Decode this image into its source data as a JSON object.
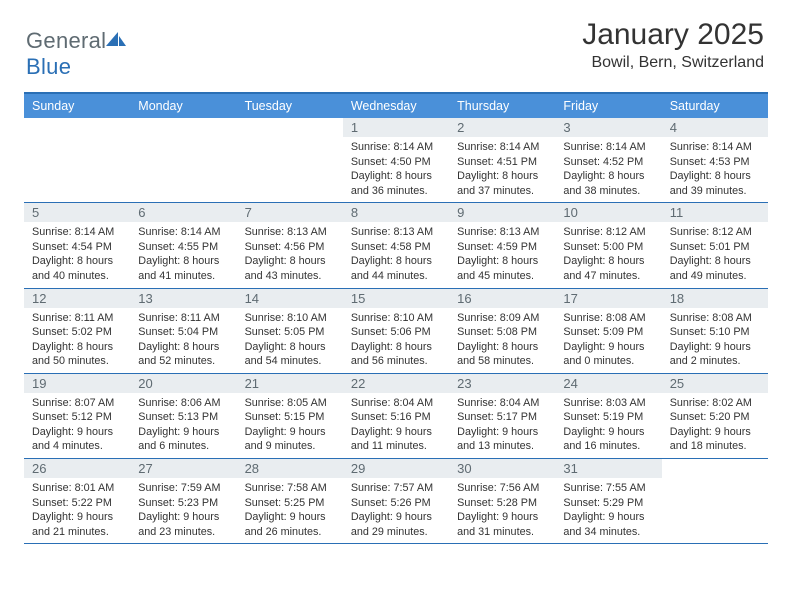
{
  "brand": {
    "name_part1": "General",
    "name_part2": "Blue",
    "text_color": "#5f6b72",
    "accent_color": "#2a6fb5"
  },
  "title": "January 2025",
  "location": "Bowil, Bern, Switzerland",
  "colors": {
    "header_bar": "#4a90d9",
    "rule": "#2a6fb5",
    "daynum_bg": "#e9edf0",
    "daynum_fg": "#5f6b72",
    "text": "#333333",
    "background": "#ffffff"
  },
  "day_names": [
    "Sunday",
    "Monday",
    "Tuesday",
    "Wednesday",
    "Thursday",
    "Friday",
    "Saturday"
  ],
  "weeks": [
    [
      {
        "n": "",
        "lines": []
      },
      {
        "n": "",
        "lines": []
      },
      {
        "n": "",
        "lines": []
      },
      {
        "n": "1",
        "lines": [
          "Sunrise: 8:14 AM",
          "Sunset: 4:50 PM",
          "Daylight: 8 hours and 36 minutes."
        ]
      },
      {
        "n": "2",
        "lines": [
          "Sunrise: 8:14 AM",
          "Sunset: 4:51 PM",
          "Daylight: 8 hours and 37 minutes."
        ]
      },
      {
        "n": "3",
        "lines": [
          "Sunrise: 8:14 AM",
          "Sunset: 4:52 PM",
          "Daylight: 8 hours and 38 minutes."
        ]
      },
      {
        "n": "4",
        "lines": [
          "Sunrise: 8:14 AM",
          "Sunset: 4:53 PM",
          "Daylight: 8 hours and 39 minutes."
        ]
      }
    ],
    [
      {
        "n": "5",
        "lines": [
          "Sunrise: 8:14 AM",
          "Sunset: 4:54 PM",
          "Daylight: 8 hours and 40 minutes."
        ]
      },
      {
        "n": "6",
        "lines": [
          "Sunrise: 8:14 AM",
          "Sunset: 4:55 PM",
          "Daylight: 8 hours and 41 minutes."
        ]
      },
      {
        "n": "7",
        "lines": [
          "Sunrise: 8:13 AM",
          "Sunset: 4:56 PM",
          "Daylight: 8 hours and 43 minutes."
        ]
      },
      {
        "n": "8",
        "lines": [
          "Sunrise: 8:13 AM",
          "Sunset: 4:58 PM",
          "Daylight: 8 hours and 44 minutes."
        ]
      },
      {
        "n": "9",
        "lines": [
          "Sunrise: 8:13 AM",
          "Sunset: 4:59 PM",
          "Daylight: 8 hours and 45 minutes."
        ]
      },
      {
        "n": "10",
        "lines": [
          "Sunrise: 8:12 AM",
          "Sunset: 5:00 PM",
          "Daylight: 8 hours and 47 minutes."
        ]
      },
      {
        "n": "11",
        "lines": [
          "Sunrise: 8:12 AM",
          "Sunset: 5:01 PM",
          "Daylight: 8 hours and 49 minutes."
        ]
      }
    ],
    [
      {
        "n": "12",
        "lines": [
          "Sunrise: 8:11 AM",
          "Sunset: 5:02 PM",
          "Daylight: 8 hours and 50 minutes."
        ]
      },
      {
        "n": "13",
        "lines": [
          "Sunrise: 8:11 AM",
          "Sunset: 5:04 PM",
          "Daylight: 8 hours and 52 minutes."
        ]
      },
      {
        "n": "14",
        "lines": [
          "Sunrise: 8:10 AM",
          "Sunset: 5:05 PM",
          "Daylight: 8 hours and 54 minutes."
        ]
      },
      {
        "n": "15",
        "lines": [
          "Sunrise: 8:10 AM",
          "Sunset: 5:06 PM",
          "Daylight: 8 hours and 56 minutes."
        ]
      },
      {
        "n": "16",
        "lines": [
          "Sunrise: 8:09 AM",
          "Sunset: 5:08 PM",
          "Daylight: 8 hours and 58 minutes."
        ]
      },
      {
        "n": "17",
        "lines": [
          "Sunrise: 8:08 AM",
          "Sunset: 5:09 PM",
          "Daylight: 9 hours and 0 minutes."
        ]
      },
      {
        "n": "18",
        "lines": [
          "Sunrise: 8:08 AM",
          "Sunset: 5:10 PM",
          "Daylight: 9 hours and 2 minutes."
        ]
      }
    ],
    [
      {
        "n": "19",
        "lines": [
          "Sunrise: 8:07 AM",
          "Sunset: 5:12 PM",
          "Daylight: 9 hours and 4 minutes."
        ]
      },
      {
        "n": "20",
        "lines": [
          "Sunrise: 8:06 AM",
          "Sunset: 5:13 PM",
          "Daylight: 9 hours and 6 minutes."
        ]
      },
      {
        "n": "21",
        "lines": [
          "Sunrise: 8:05 AM",
          "Sunset: 5:15 PM",
          "Daylight: 9 hours and 9 minutes."
        ]
      },
      {
        "n": "22",
        "lines": [
          "Sunrise: 8:04 AM",
          "Sunset: 5:16 PM",
          "Daylight: 9 hours and 11 minutes."
        ]
      },
      {
        "n": "23",
        "lines": [
          "Sunrise: 8:04 AM",
          "Sunset: 5:17 PM",
          "Daylight: 9 hours and 13 minutes."
        ]
      },
      {
        "n": "24",
        "lines": [
          "Sunrise: 8:03 AM",
          "Sunset: 5:19 PM",
          "Daylight: 9 hours and 16 minutes."
        ]
      },
      {
        "n": "25",
        "lines": [
          "Sunrise: 8:02 AM",
          "Sunset: 5:20 PM",
          "Daylight: 9 hours and 18 minutes."
        ]
      }
    ],
    [
      {
        "n": "26",
        "lines": [
          "Sunrise: 8:01 AM",
          "Sunset: 5:22 PM",
          "Daylight: 9 hours and 21 minutes."
        ]
      },
      {
        "n": "27",
        "lines": [
          "Sunrise: 7:59 AM",
          "Sunset: 5:23 PM",
          "Daylight: 9 hours and 23 minutes."
        ]
      },
      {
        "n": "28",
        "lines": [
          "Sunrise: 7:58 AM",
          "Sunset: 5:25 PM",
          "Daylight: 9 hours and 26 minutes."
        ]
      },
      {
        "n": "29",
        "lines": [
          "Sunrise: 7:57 AM",
          "Sunset: 5:26 PM",
          "Daylight: 9 hours and 29 minutes."
        ]
      },
      {
        "n": "30",
        "lines": [
          "Sunrise: 7:56 AM",
          "Sunset: 5:28 PM",
          "Daylight: 9 hours and 31 minutes."
        ]
      },
      {
        "n": "31",
        "lines": [
          "Sunrise: 7:55 AM",
          "Sunset: 5:29 PM",
          "Daylight: 9 hours and 34 minutes."
        ]
      },
      {
        "n": "",
        "lines": []
      }
    ]
  ]
}
